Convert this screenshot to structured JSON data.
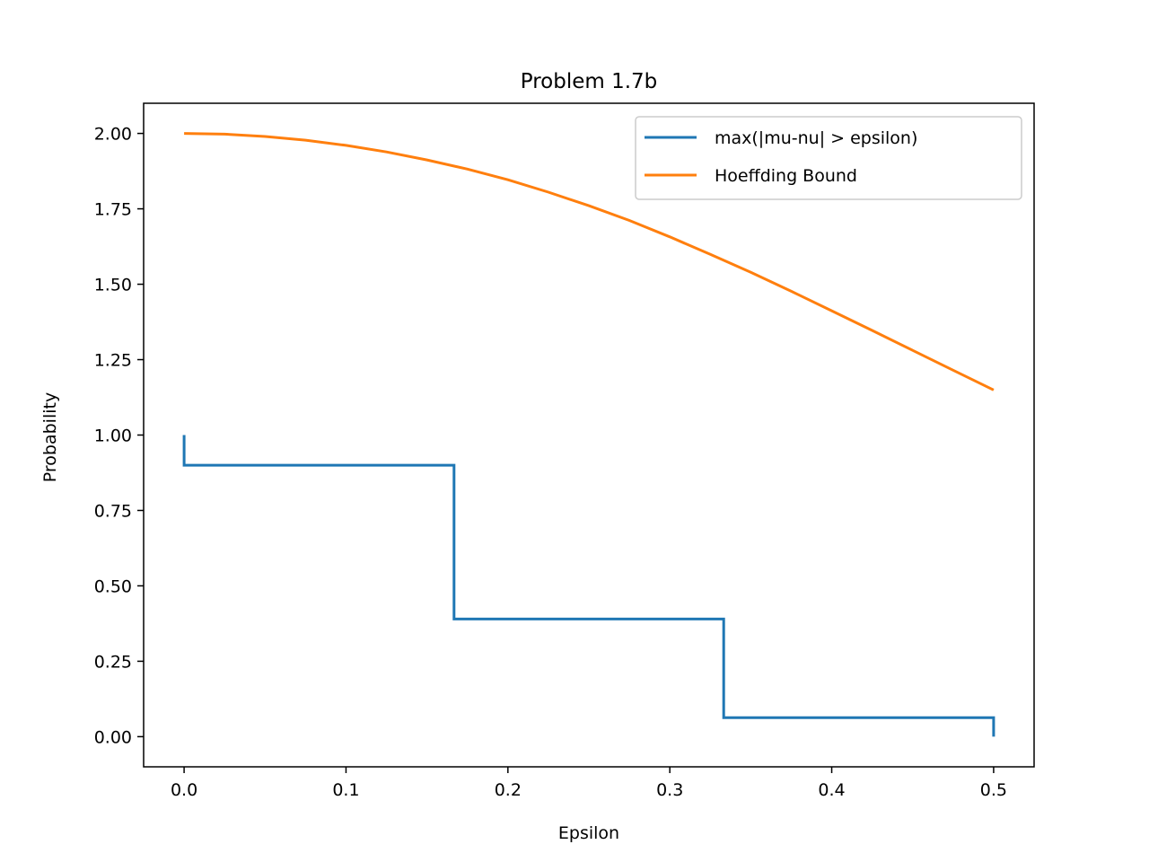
{
  "chart_data": {
    "type": "line",
    "title": "Problem 1.7b",
    "xlabel": "Epsilon",
    "ylabel": "Probability",
    "xlim": [
      -0.025,
      0.525
    ],
    "ylim": [
      -0.1,
      2.1
    ],
    "xticks": [
      0.0,
      0.1,
      0.2,
      0.3,
      0.4,
      0.5
    ],
    "xtick_labels": [
      "0.0",
      "0.1",
      "0.2",
      "0.3",
      "0.4",
      "0.5"
    ],
    "yticks": [
      0.0,
      0.25,
      0.5,
      0.75,
      1.0,
      1.25,
      1.5,
      1.75,
      2.0
    ],
    "ytick_labels": [
      "0.00",
      "0.25",
      "0.50",
      "0.75",
      "1.00",
      "1.25",
      "1.50",
      "1.75",
      "2.00"
    ],
    "grid": false,
    "legend_position": "upper right",
    "series": [
      {
        "name": "max(|mu-nu| > epsilon)",
        "color": "#1f77b4",
        "style": "step",
        "x": [
          0.0,
          0.0,
          0.1667,
          0.1667,
          0.3333,
          0.3333,
          0.5,
          0.5
        ],
        "y": [
          1.0,
          0.9,
          0.9,
          0.39,
          0.39,
          0.063,
          0.063,
          0.0
        ]
      },
      {
        "name": "Hoeffding Bound",
        "color": "#ff7f0e",
        "style": "line",
        "x": [
          0.0,
          0.025,
          0.05,
          0.075,
          0.1,
          0.125,
          0.15,
          0.175,
          0.2,
          0.225,
          0.25,
          0.275,
          0.3,
          0.325,
          0.35,
          0.375,
          0.4,
          0.425,
          0.45,
          0.475,
          0.5
        ],
        "y": [
          2.0,
          1.9975,
          1.99,
          1.9776,
          1.9604,
          1.9385,
          1.9122,
          1.8817,
          1.8463,
          1.8053,
          1.7603,
          1.7116,
          1.6569,
          1.5991,
          1.5394,
          1.4767,
          1.4121,
          1.3467,
          1.2808,
          1.2148,
          1.1494
        ]
      }
    ]
  }
}
